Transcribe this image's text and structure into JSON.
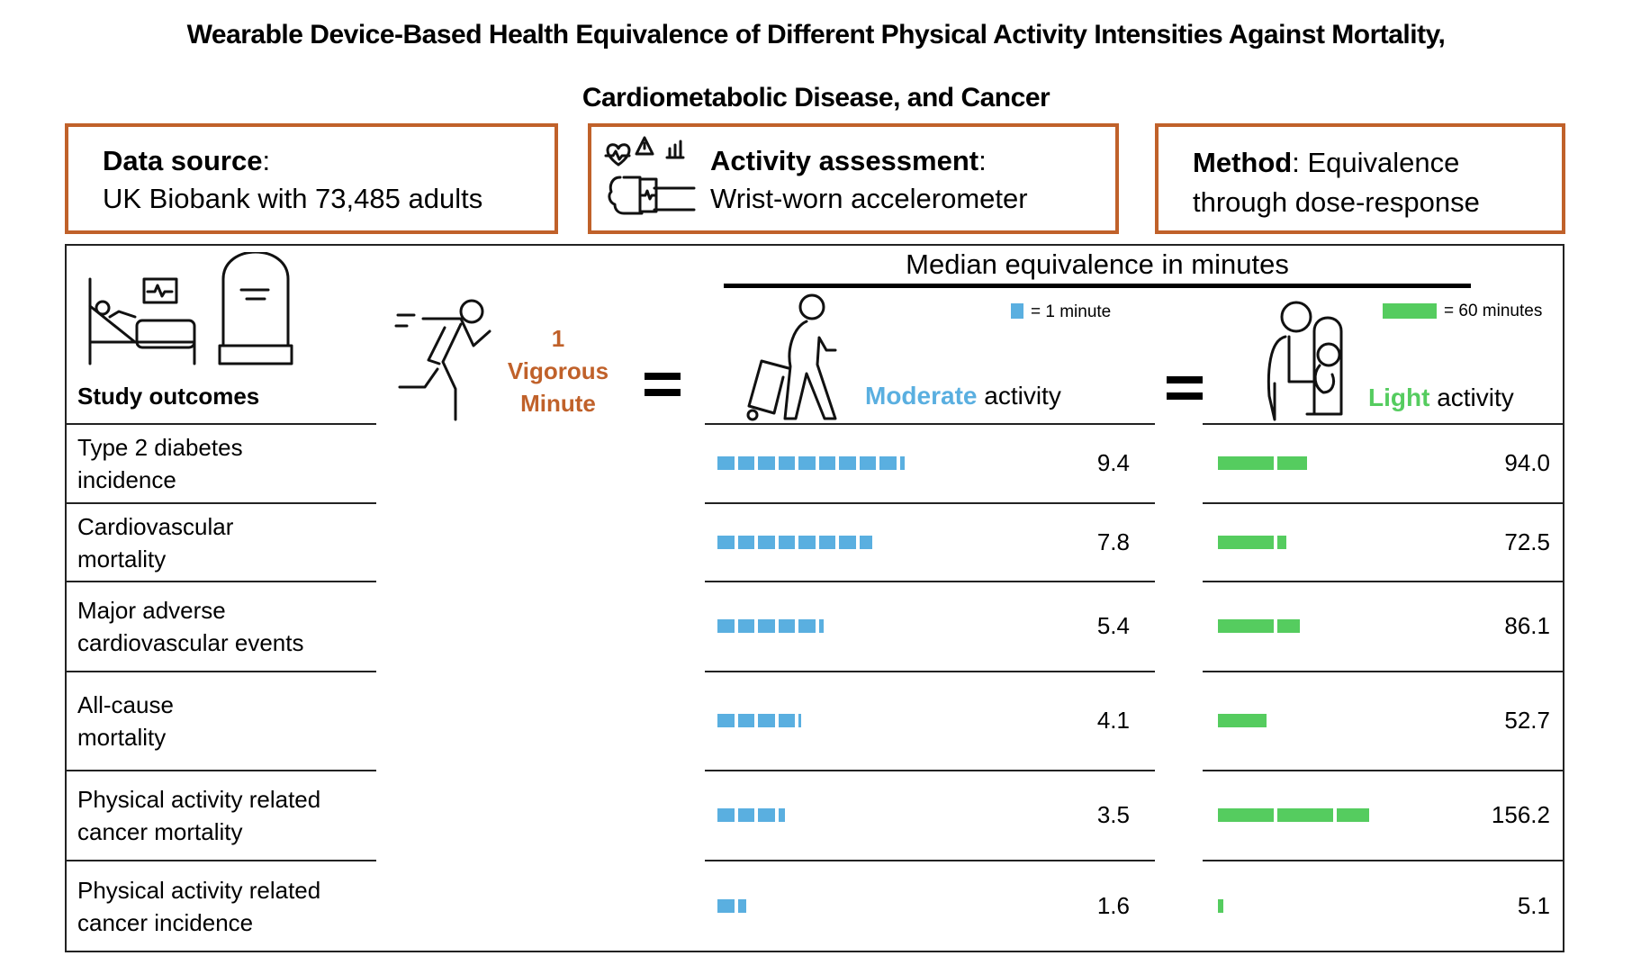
{
  "title": {
    "line1": "Wearable Device-Based Health Equivalence of Different Physical Activity Intensities Against Mortality,",
    "line2": "Cardiometabolic Disease, and Cancer"
  },
  "info_boxes": {
    "data_source": {
      "label": "Data source",
      "colon": ":",
      "text": "UK Biobank with 73,485 adults"
    },
    "activity_assessment": {
      "label": "Activity assessment",
      "colon": ":",
      "text": "Wrist-worn accelerometer"
    },
    "method": {
      "label": "Method",
      "colon": ":",
      "text_line1": " Equivalence",
      "text_line2": "through dose-response"
    }
  },
  "header": {
    "study_outcomes": "Study outcomes",
    "vigorous": {
      "num": "1",
      "line1": "Vigorous",
      "line2": "Minute"
    },
    "median_title": "Median equivalence in minutes",
    "moderate": {
      "colored": "Moderate",
      "rest": " activity",
      "legend": "= 1 minute",
      "unit_minutes": 1
    },
    "light": {
      "colored": "Light",
      "rest": " activity",
      "legend": "= 60 minutes",
      "unit_minutes": 60
    }
  },
  "colors": {
    "moderate": "#5aafe0",
    "light": "#55cc5f",
    "accent": "#c0612a"
  },
  "chart_data": {
    "type": "table",
    "columns": [
      "Study outcomes",
      "Moderate activity (min)",
      "Light activity (min)"
    ],
    "rows": [
      {
        "outcome_l1": "Type 2 diabetes",
        "outcome_l2": "incidence",
        "moderate": 9.4,
        "moderate_label": "9.4",
        "light": 94.0,
        "light_label": "94.0"
      },
      {
        "outcome_l1": "Cardiovascular",
        "outcome_l2": "mortality",
        "moderate": 7.8,
        "moderate_label": "7.8",
        "light": 72.5,
        "light_label": "72.5"
      },
      {
        "outcome_l1": "Major adverse",
        "outcome_l2": "cardiovascular events",
        "moderate": 5.4,
        "moderate_label": "5.4",
        "light": 86.1,
        "light_label": "86.1"
      },
      {
        "outcome_l1": "All-cause",
        "outcome_l2": "mortality",
        "moderate": 4.1,
        "moderate_label": "4.1",
        "light": 52.7,
        "light_label": "52.7"
      },
      {
        "outcome_l1": "Physical activity related",
        "outcome_l2": "cancer mortality",
        "moderate": 3.5,
        "moderate_label": "3.5",
        "light": 156.2,
        "light_label": "156.2"
      },
      {
        "outcome_l1": "Physical activity related",
        "outcome_l2": "cancer incidence",
        "moderate": 1.6,
        "moderate_label": "1.6",
        "light": 5.1,
        "light_label": "5.1"
      }
    ]
  }
}
